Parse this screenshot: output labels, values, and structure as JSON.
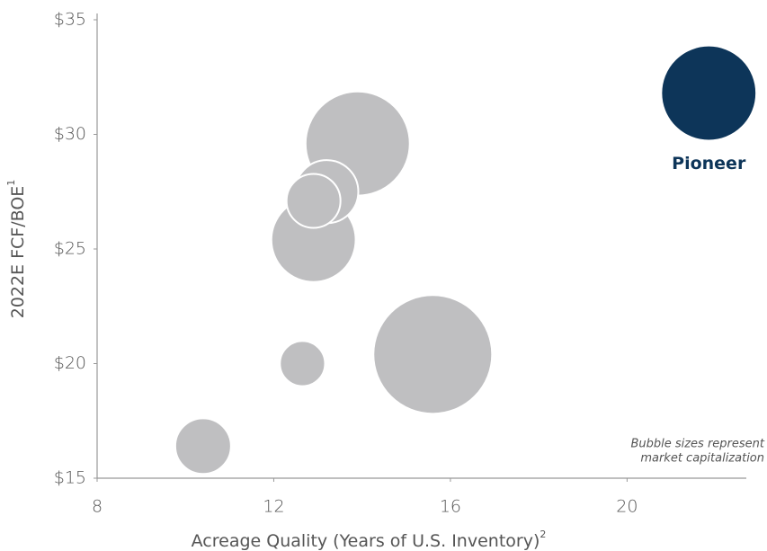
{
  "chart_data": {
    "type": "scatter",
    "xlabel": "Acreage Quality (Years of U.S. Inventory)",
    "xlabel_note": "2",
    "ylabel": "2022E FCF/BOE",
    "ylabel_note": "1",
    "annotation": [
      "Bubble sizes represent",
      "market capitalization"
    ],
    "xlim": [
      8,
      22.7
    ],
    "ylim": [
      15,
      35
    ],
    "xticks": [
      8,
      12,
      16,
      20
    ],
    "yticks": [
      {
        "value": 15,
        "label": "$15"
      },
      {
        "value": 20,
        "label": "$20"
      },
      {
        "value": 25,
        "label": "$25"
      },
      {
        "value": 30,
        "label": "$30"
      },
      {
        "value": 35,
        "label": "$35"
      }
    ],
    "series": [
      {
        "color": "#bfbfc1",
        "x": [
          13.9,
          15.6,
          12.9,
          13.2,
          12.9,
          12.65,
          10.4
        ],
        "values": [
          29.6,
          20.4,
          25.4,
          27.5,
          27.1,
          20.0,
          16.4
        ],
        "sizes": [
          33.6,
          43.6,
          22,
          12.3,
          9,
          6.3,
          9.6
        ]
      },
      {
        "name": "Pioneer",
        "color": "#0d3559",
        "x": [
          21.85
        ],
        "values": [
          31.8
        ],
        "sizes": [
          28
        ]
      }
    ]
  }
}
